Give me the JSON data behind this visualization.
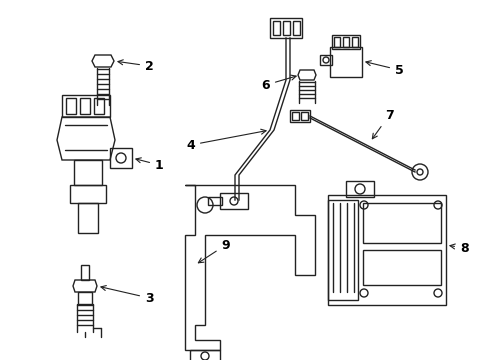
{
  "bg_color": "#ffffff",
  "line_color": "#222222",
  "label_color": "#000000",
  "fig_width": 4.9,
  "fig_height": 3.6,
  "dpi": 100,
  "font_size": 9
}
